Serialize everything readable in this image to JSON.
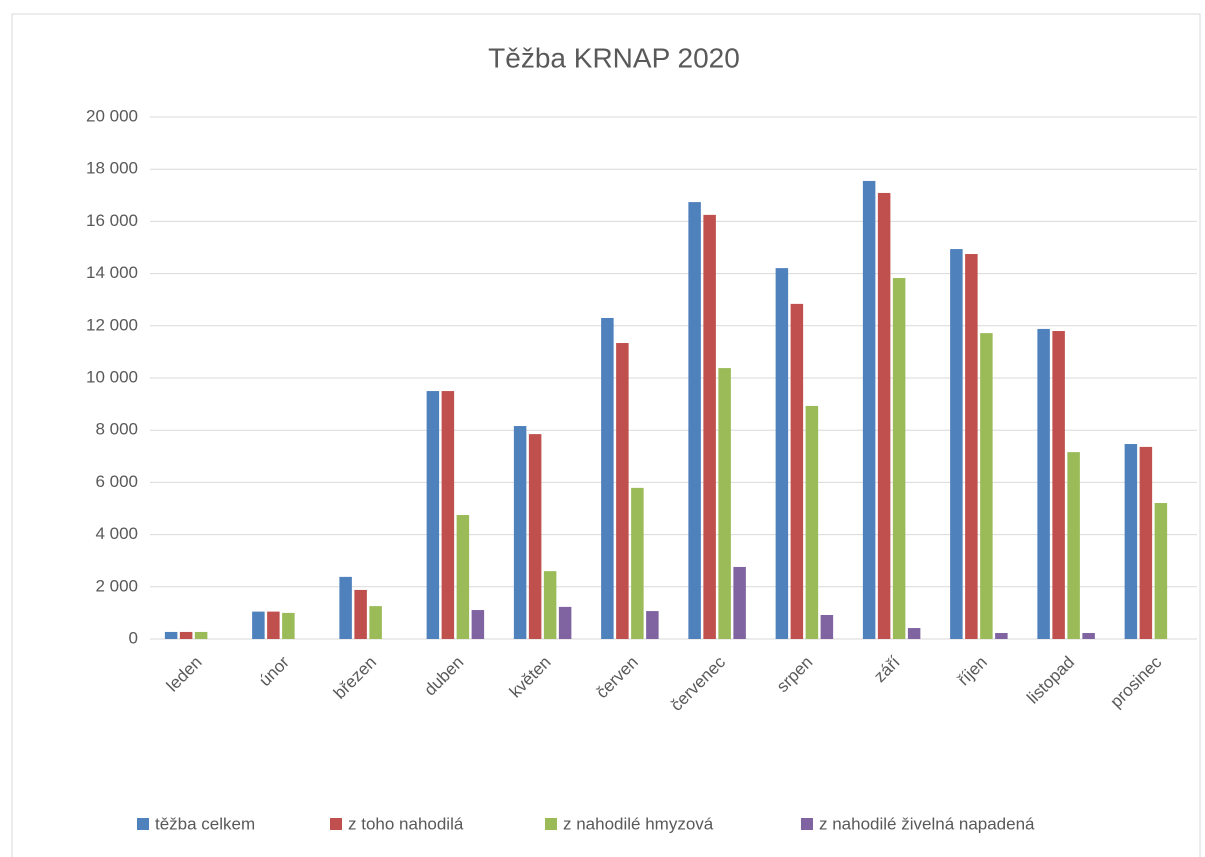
{
  "chart_data": {
    "type": "bar",
    "title": "Těžba KRNAP 2020",
    "categories": [
      "leden",
      "únor",
      "březen",
      "duben",
      "květen",
      "červen",
      "červenec",
      "srpen",
      "září",
      "říjen",
      "listopad",
      "prosinec"
    ],
    "series": [
      {
        "name": "těžba celkem",
        "color": "#4f81bd",
        "values": [
          270,
          1050,
          2380,
          9500,
          8160,
          12300,
          16740,
          14210,
          17550,
          14940,
          11880,
          7470
        ]
      },
      {
        "name": "z toho nahodilá",
        "color": "#c0504d",
        "values": [
          270,
          1050,
          1880,
          9500,
          7850,
          11340,
          16250,
          12840,
          17090,
          14750,
          11800,
          7360
        ]
      },
      {
        "name": "z nahodilé hmyzová",
        "color": "#9bbb59",
        "values": [
          270,
          1000,
          1260,
          4750,
          2600,
          5790,
          10380,
          8930,
          13830,
          11720,
          7160,
          5210
        ]
      },
      {
        "name": "z nahodilé živelná napadená",
        "color": "#8064a2",
        "values": [
          0,
          0,
          0,
          1110,
          1230,
          1070,
          2760,
          920,
          420,
          230,
          230,
          0
        ]
      }
    ],
    "ylim": [
      0,
      20000
    ],
    "yticks": [
      0,
      {
        "value": 2000,
        "label": "2 000"
      },
      {
        "value": 4000,
        "label": "4 000"
      },
      {
        "value": 6000,
        "label": "6 000"
      },
      {
        "value": 8000,
        "label": "8 000"
      },
      {
        "value": 10000,
        "label": "10 000"
      },
      {
        "value": 12000,
        "label": "12 000"
      },
      {
        "value": 14000,
        "label": "14 000"
      },
      {
        "value": 16000,
        "label": "16 000"
      },
      {
        "value": 18000,
        "label": "18 000"
      },
      {
        "value": 20000,
        "label": "20 000"
      }
    ],
    "grid": true,
    "legend": "bottom"
  }
}
